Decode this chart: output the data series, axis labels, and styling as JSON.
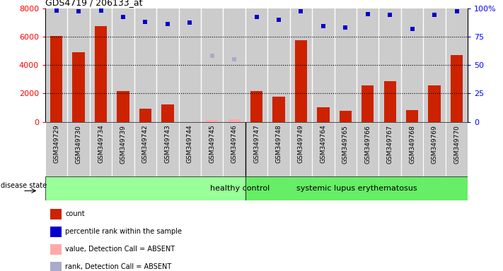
{
  "title": "GDS4719 / 206133_at",
  "samples": [
    "GSM349729",
    "GSM349730",
    "GSM349734",
    "GSM349739",
    "GSM349742",
    "GSM349743",
    "GSM349744",
    "GSM349745",
    "GSM349746",
    "GSM349747",
    "GSM349748",
    "GSM349749",
    "GSM349764",
    "GSM349765",
    "GSM349766",
    "GSM349767",
    "GSM349768",
    "GSM349769",
    "GSM349770"
  ],
  "counts": [
    6050,
    4880,
    6720,
    2180,
    950,
    1250,
    0,
    0,
    0,
    2170,
    1780,
    5720,
    1010,
    780,
    2590,
    2850,
    810,
    2580,
    4720
  ],
  "absent_values": [
    null,
    null,
    null,
    null,
    null,
    null,
    null,
    130,
    200,
    null,
    null,
    null,
    null,
    null,
    null,
    null,
    null,
    null,
    null
  ],
  "percentile_ranks": [
    98,
    97,
    98,
    92,
    88,
    86,
    87,
    null,
    null,
    92,
    90,
    97,
    84,
    83,
    95,
    94,
    82,
    94,
    97
  ],
  "absent_ranks": [
    null,
    null,
    null,
    null,
    null,
    null,
    null,
    58,
    55,
    null,
    null,
    null,
    null,
    null,
    null,
    null,
    null,
    null,
    null
  ],
  "n_healthy": 9,
  "n_lupus": 10,
  "healthy_label": "healthy control",
  "lupus_label": "systemic lupus erythematosus",
  "disease_state_label": "disease state",
  "ylim_left": [
    0,
    8000
  ],
  "ylim_right": [
    0,
    100
  ],
  "yticks_left": [
    0,
    2000,
    4000,
    6000,
    8000
  ],
  "yticks_right": [
    0,
    25,
    50,
    75,
    100
  ],
  "ytick_labels_right": [
    "0",
    "25",
    "50",
    "75",
    "100%"
  ],
  "bar_color": "#cc2200",
  "absent_bar_color": "#ffaaaa",
  "dot_color": "#0000cc",
  "absent_dot_color": "#aaaacc",
  "bg_color": "#cccccc",
  "healthy_bg": "#99ff99",
  "lupus_bg": "#66ee66",
  "legend_count_color": "#cc2200",
  "legend_dot_color": "#0000cc",
  "legend_absent_val_color": "#ffaaaa",
  "legend_absent_rank_color": "#aaaacc"
}
